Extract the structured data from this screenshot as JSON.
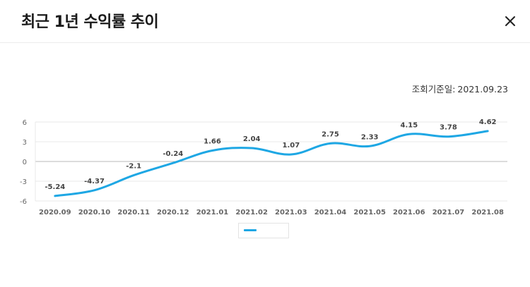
{
  "modal": {
    "title": "최근 1년 수익률 추이",
    "close_icon": "close-icon"
  },
  "reference": {
    "label": "조회기준일:",
    "date": "2021.09.23"
  },
  "colors": {
    "line": "#1ea7e4",
    "grid": "#e9e9e9",
    "zero_line": "#b8b8b8",
    "tick_text": "#666666",
    "data_label": "#444444"
  },
  "chart_data": {
    "type": "line",
    "categories": [
      "2020.09",
      "2020.10",
      "2020.11",
      "2020.12",
      "2021.01",
      "2021.02",
      "2021.03",
      "2021.04",
      "2021.05",
      "2021.06",
      "2021.07",
      "2021.08"
    ],
    "series": [
      {
        "name": "",
        "values": [
          -5.24,
          -4.37,
          -2.1,
          -0.24,
          1.66,
          2.04,
          1.07,
          2.75,
          2.33,
          4.15,
          3.78,
          4.62
        ]
      }
    ],
    "data_labels": [
      "-5.24",
      "-4.37",
      "-2.1",
      "-0.24",
      "1.66",
      "2.04",
      "1.07",
      "2.75",
      "2.33",
      "4.15",
      "3.78",
      "4.62"
    ],
    "yticks": [
      6,
      3,
      0,
      -3,
      -6
    ],
    "ylim": [
      -6,
      6
    ],
    "grid": true,
    "smooth": true,
    "legend_position": "bottom-center",
    "title": "",
    "xlabel": "",
    "ylabel": ""
  }
}
